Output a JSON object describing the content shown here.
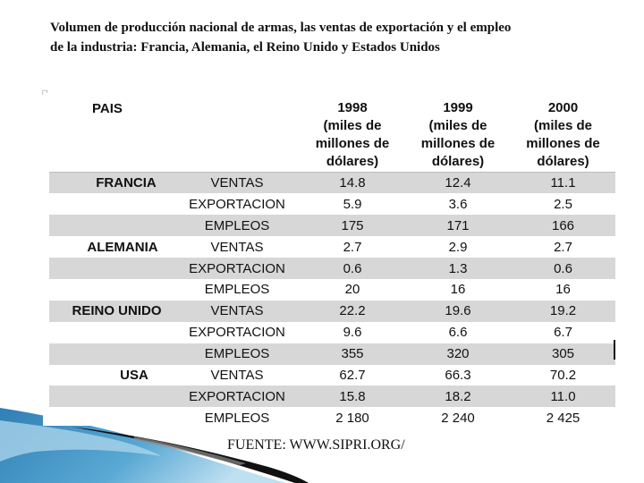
{
  "title": {
    "line1": "Volumen de producción nacional de armas, las ventas de exportación y el empleo",
    "line2": "de la industria: Francia, Alemania, el Reino Unido y Estados Unidos"
  },
  "bullet": "☐",
  "table": {
    "headers": {
      "pais": "PAIS",
      "year_1998": "1998",
      "year_1999": "1999",
      "year_2000": "2000",
      "unit": [
        "(miles de",
        "millones de",
        "dólares)"
      ]
    },
    "rows": [
      {
        "country": "FRANCIA",
        "metric": "VENTAS",
        "v1998": "14.8",
        "v1999": "12.4",
        "v2000": "11.1"
      },
      {
        "country": "",
        "metric": "EXPORTACION",
        "v1998": "5.9",
        "v1999": "3.6",
        "v2000": "2.5"
      },
      {
        "country": "",
        "metric": "EMPLEOS",
        "v1998": "175",
        "v1999": "171",
        "v2000": "166"
      },
      {
        "country": "ALEMANIA",
        "metric": "VENTAS",
        "v1998": "2.7",
        "v1999": "2.9",
        "v2000": "2.7"
      },
      {
        "country": "",
        "metric": "EXPORTACION",
        "v1998": "0.6",
        "v1999": "1.3",
        "v2000": "0.6"
      },
      {
        "country": "",
        "metric": "EMPLEOS",
        "v1998": "20",
        "v1999": "16",
        "v2000": "16"
      },
      {
        "country": "REINO UNIDO",
        "metric": "VENTAS",
        "v1998": "22.2",
        "v1999": "19.6",
        "v2000": "19.2"
      },
      {
        "country": "",
        "metric": "EXPORTACION",
        "v1998": "9.6",
        "v1999": "6.6",
        "v2000": "6.7"
      },
      {
        "country": "",
        "metric": "EMPLEOS",
        "v1998": "355",
        "v1999": "320",
        "v2000": "305"
      },
      {
        "country": "USA",
        "metric": "VENTAS",
        "v1998": "62.7",
        "v1999": "66.3",
        "v2000": "70.2"
      },
      {
        "country": "",
        "metric": "EXPORTACION",
        "v1998": "15.8",
        "v1999": "18.2",
        "v2000": "11.0"
      },
      {
        "country": "",
        "metric": "EMPLEOS",
        "v1998": "2 180",
        "v1999": "2 240",
        "v2000": "2 425"
      }
    ]
  },
  "source": "FUENTE: WWW.SIPRI.ORG/",
  "colors": {
    "row_shade": "#d7d7d7",
    "swoosh_blue": "#3a8fc0",
    "swoosh_light": "#a9d3ea",
    "swoosh_dark": "#111111"
  }
}
